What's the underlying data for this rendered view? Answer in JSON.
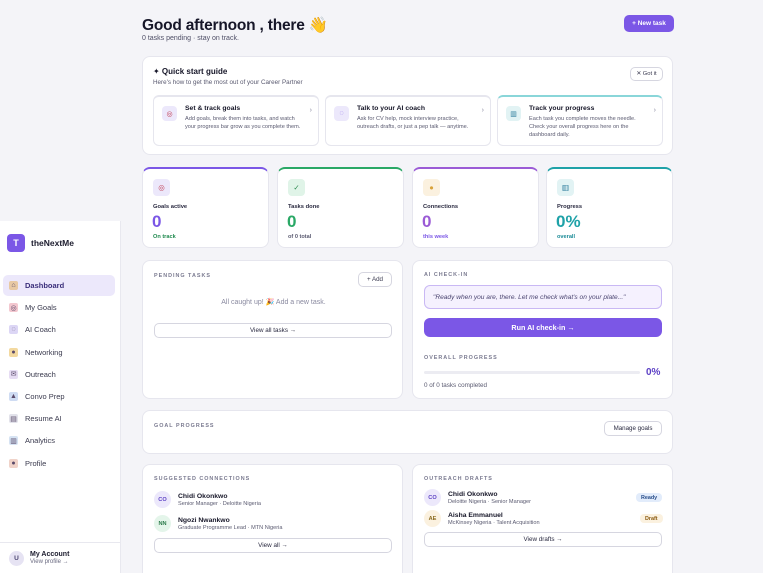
{
  "header": {
    "greeting": "Good afternoon , there 👋",
    "subtitle": "0 tasks pending · stay on track.",
    "new_task_label": "+ New task"
  },
  "sidebar": {
    "brand_badge": "T",
    "brand_name": "theNextMe",
    "items": [
      {
        "label": "Dashboard",
        "icon": "home-icon",
        "glyph": "⌂",
        "color": "#e8c9a3",
        "active": true
      },
      {
        "label": "My Goals",
        "icon": "target-icon",
        "glyph": "◎",
        "color": "#f3c7cf",
        "active": false
      },
      {
        "label": "AI Coach",
        "icon": "chat-icon",
        "glyph": "◌",
        "color": "#dcd6f5",
        "active": false
      },
      {
        "label": "Networking",
        "icon": "handshake-icon",
        "glyph": "●",
        "color": "#f3d9a0",
        "active": false
      },
      {
        "label": "Outreach",
        "icon": "mail-icon",
        "glyph": "✉",
        "color": "#e6dcf3",
        "active": false
      },
      {
        "label": "Convo Prep",
        "icon": "mic-icon",
        "glyph": "▲",
        "color": "#cfdcf3",
        "active": false
      },
      {
        "label": "Resume AI",
        "icon": "document-icon",
        "glyph": "▤",
        "color": "#e2e2ea",
        "active": false
      },
      {
        "label": "Analytics",
        "icon": "chart-icon",
        "glyph": "▥",
        "color": "#d6e3f3",
        "active": false
      },
      {
        "label": "Profile",
        "icon": "user-icon",
        "glyph": "●",
        "color": "#f0d3c9",
        "active": false
      }
    ],
    "account": {
      "avatar": "U",
      "name": "My Account",
      "sub": "View profile →"
    }
  },
  "quickstart": {
    "title": "✦ Quick start guide",
    "subtitle": "Here's how to get the most out of your Career Partner",
    "dismiss_label": "✕ Got it",
    "steps": [
      {
        "title": "Set & track goals",
        "desc": "Add goals, break them into tasks, and watch your progress bar grow as you complete them.",
        "icon": "target-icon",
        "glyph": "◎",
        "icon_bg": "#ece8fb",
        "icon_color": "#c0394f"
      },
      {
        "title": "Talk to your AI coach",
        "desc": "Ask for CV help, mock interview practice, outreach drafts, or just a pep talk — anytime.",
        "icon": "chat-icon",
        "glyph": "◌",
        "icon_bg": "#ece8fb",
        "icon_color": "#7b57e6"
      },
      {
        "title": "Track your progress",
        "desc": "Each task you complete moves the needle. Check your overall progress here on the dashboard daily.",
        "icon": "chart-icon",
        "glyph": "▥",
        "icon_bg": "#e2f3f4",
        "icon_color": "#2a7a9a"
      }
    ]
  },
  "stats": [
    {
      "label": "Goals active",
      "value": "0",
      "foot": "On track",
      "icon": "target-icon",
      "glyph": "◎",
      "accent": "#7b57e6",
      "foot_color": "#1f8a4e",
      "icon_bg": "#ece8fb",
      "icon_color": "#c0394f"
    },
    {
      "label": "Tasks done",
      "value": "0",
      "foot": "of 0 total",
      "icon": "check-icon",
      "glyph": "✓",
      "accent": "#2aa866",
      "foot_color": "#5a5a70",
      "icon_bg": "#e0f4e8",
      "icon_color": "#2a8a4e"
    },
    {
      "label": "Connections",
      "value": "0",
      "foot": "this week",
      "icon": "handshake-icon",
      "glyph": "●",
      "accent": "#9b5bd6",
      "foot_color": "#7b57e6",
      "icon_bg": "#fbf1df",
      "icon_color": "#d8a23a"
    },
    {
      "label": "Progress",
      "value": "0%",
      "foot": "overall",
      "icon": "chart-icon",
      "glyph": "▥",
      "accent": "#1fa2a8",
      "foot_color": "#1a8a96",
      "icon_bg": "#e2f3f4",
      "icon_color": "#2a7a9a"
    }
  ],
  "pending": {
    "label": "PENDING TASKS",
    "add_label": "+ Add",
    "empty_text": "All caught up! 🎉  Add a new task.",
    "view_all_label": "View all tasks →"
  },
  "checkin": {
    "label": "AI CHECK-IN",
    "quote": "\"Ready when you are, there. Let me check what's on your plate...\"",
    "run_label": "Run AI check-in →",
    "overall_label": "OVERALL PROGRESS",
    "progress_fraction": 0,
    "percent_text": "0%",
    "completed_text": "0 of 0 tasks completed"
  },
  "goal_progress": {
    "label": "GOAL PROGRESS",
    "manage_label": "Manage goals"
  },
  "connections": {
    "label": "SUGGESTED CONNECTIONS",
    "people": [
      {
        "initials": "CO",
        "name": "Chidi Okonkwo",
        "sub": "Senior Manager · Deloitte Nigeria"
      },
      {
        "initials": "NN",
        "name": "Ngozi Nwankwo",
        "sub": "Graduate Programme Lead · MTN Nigeria"
      }
    ],
    "view_all_label": "View all →"
  },
  "outreach": {
    "label": "OUTREACH DRAFTS",
    "drafts": [
      {
        "initials": "CO",
        "name": "Chidi Okonkwo",
        "sub": "Deloitte Nigeria · Senior Manager",
        "status": "Ready"
      },
      {
        "initials": "AE",
        "name": "Aisha Emmanuel",
        "sub": "McKinsey Nigeria · Talent Acquisition",
        "status": "Draft"
      }
    ],
    "view_label": "View drafts →"
  }
}
